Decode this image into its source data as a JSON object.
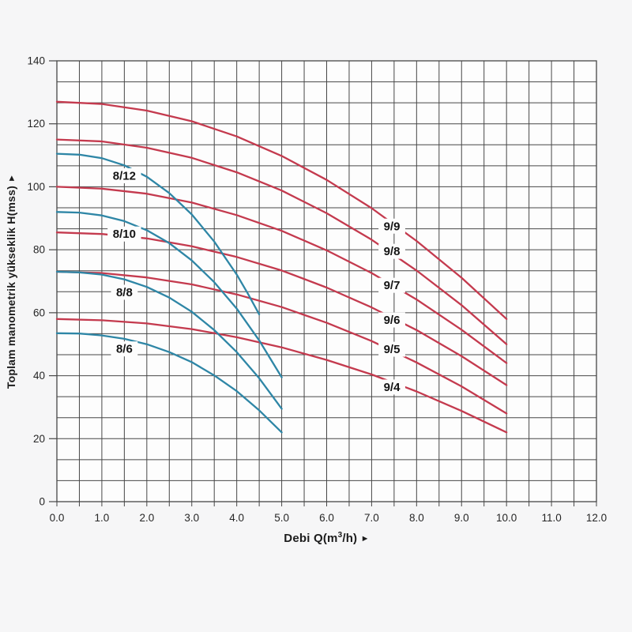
{
  "page": {
    "background": "#f6f6f7"
  },
  "chart_data": {
    "type": "line",
    "title": "",
    "xlabel": "Debi Q(m³/h)",
    "xlabel_parts": {
      "prefix": "Debi Q(m",
      "sup": "3",
      "suffix": "/h) "
    },
    "ylabel": "Toplam manometrik yükseklik H(mss) ",
    "axis_arrow": "►",
    "xlim": [
      0,
      12
    ],
    "ylim": [
      0,
      140
    ],
    "x_tick_labels": [
      "0.0",
      "1.0",
      "2.0",
      "3.0",
      "4.0",
      "5.0",
      "6.0",
      "7.0",
      "8.0",
      "9.0",
      "10.0",
      "11.0",
      "12.0"
    ],
    "x_tick_values": [
      0,
      1,
      2,
      3,
      4,
      5,
      6,
      7,
      8,
      9,
      10,
      11,
      12
    ],
    "x_minor_step": 0.5,
    "y_tick_labels": [
      "0",
      "20",
      "40",
      "60",
      "80",
      "100",
      "120",
      "140"
    ],
    "y_tick_values": [
      0,
      20,
      40,
      60,
      80,
      100,
      120,
      140
    ],
    "y_minor_divisions_per_major": 3,
    "grid": true,
    "legend_position": "labels-on-curves",
    "colors": {
      "blue": "#2e86a6",
      "red": "#c43a4e",
      "grid": "#474747",
      "text": "#262626",
      "label_text": "#141414",
      "plot_bg": "#fdfdfd",
      "page_bg": "#f6f6f7"
    },
    "series": [
      {
        "name": "9/9",
        "group": "red",
        "label": {
          "q": 7.45,
          "h": 87.5
        },
        "points": [
          [
            0,
            127
          ],
          [
            1,
            126.3
          ],
          [
            2,
            124.2
          ],
          [
            3,
            120.8
          ],
          [
            4,
            116.0
          ],
          [
            5,
            109.8
          ],
          [
            6,
            102.2
          ],
          [
            7,
            93.2
          ],
          [
            8,
            82.8
          ],
          [
            9,
            71.1
          ],
          [
            10,
            58.0
          ]
        ]
      },
      {
        "name": "9/8",
        "group": "red",
        "label": {
          "q": 7.45,
          "h": 79.5
        },
        "points": [
          [
            0,
            115
          ],
          [
            1,
            114.4
          ],
          [
            2,
            112.4
          ],
          [
            3,
            109.2
          ],
          [
            4,
            104.6
          ],
          [
            5,
            98.8
          ],
          [
            6,
            91.6
          ],
          [
            7,
            83.2
          ],
          [
            8,
            73.4
          ],
          [
            9,
            62.4
          ],
          [
            10,
            50.0
          ]
        ]
      },
      {
        "name": "9/7",
        "group": "red",
        "label": {
          "q": 7.45,
          "h": 68.7
        },
        "points": [
          [
            0,
            100
          ],
          [
            1,
            99.4
          ],
          [
            2,
            97.8
          ],
          [
            3,
            95.0
          ],
          [
            4,
            91.0
          ],
          [
            5,
            86.0
          ],
          [
            6,
            79.8
          ],
          [
            7,
            72.6
          ],
          [
            8,
            64.2
          ],
          [
            9,
            54.6
          ],
          [
            10,
            44.0
          ]
        ]
      },
      {
        "name": "9/6",
        "group": "red",
        "label": {
          "q": 7.45,
          "h": 57.7
        },
        "points": [
          [
            0,
            85.5
          ],
          [
            1,
            85.0
          ],
          [
            2,
            83.6
          ],
          [
            3,
            81.1
          ],
          [
            4,
            77.7
          ],
          [
            5,
            73.4
          ],
          [
            6,
            68.0
          ],
          [
            7,
            61.7
          ],
          [
            8,
            54.5
          ],
          [
            9,
            46.2
          ],
          [
            10,
            37.0
          ]
        ]
      },
      {
        "name": "9/5",
        "group": "red",
        "label": {
          "q": 7.45,
          "h": 48.4
        },
        "points": [
          [
            0,
            73
          ],
          [
            1,
            72.6
          ],
          [
            2,
            71.2
          ],
          [
            3,
            69.0
          ],
          [
            4,
            65.8
          ],
          [
            5,
            61.8
          ],
          [
            6,
            56.8
          ],
          [
            7,
            51.0
          ],
          [
            8,
            44.2
          ],
          [
            9,
            36.6
          ],
          [
            10,
            28.0
          ]
        ]
      },
      {
        "name": "9/4",
        "group": "red",
        "label": {
          "q": 7.45,
          "h": 36.4
        },
        "points": [
          [
            0,
            58
          ],
          [
            1,
            57.6
          ],
          [
            2,
            56.6
          ],
          [
            3,
            54.8
          ],
          [
            4,
            52.2
          ],
          [
            5,
            49.0
          ],
          [
            6,
            45.0
          ],
          [
            7,
            40.4
          ],
          [
            8,
            35.0
          ],
          [
            9,
            28.8
          ],
          [
            10,
            22.0
          ]
        ]
      },
      {
        "name": "8/12",
        "group": "blue",
        "label": {
          "q": 1.5,
          "h": 103.5
        },
        "points": [
          [
            0,
            110.5
          ],
          [
            0.5,
            110.2
          ],
          [
            1,
            109.1
          ],
          [
            1.5,
            106.8
          ],
          [
            2,
            103.2
          ],
          [
            2.5,
            98.0
          ],
          [
            3,
            91.2
          ],
          [
            3.5,
            82.6
          ],
          [
            4,
            72.1
          ],
          [
            4.25,
            66.0
          ],
          [
            4.5,
            59.5
          ]
        ]
      },
      {
        "name": "8/10",
        "group": "blue",
        "label": {
          "q": 1.5,
          "h": 85.0
        },
        "points": [
          [
            0,
            92
          ],
          [
            0.5,
            91.8
          ],
          [
            1,
            90.9
          ],
          [
            1.5,
            89.1
          ],
          [
            2,
            86.2
          ],
          [
            2.5,
            82.1
          ],
          [
            3,
            76.6
          ],
          [
            3.5,
            69.7
          ],
          [
            4,
            61.3
          ],
          [
            4.5,
            51.2
          ],
          [
            5,
            39.5
          ]
        ]
      },
      {
        "name": "8/8",
        "group": "blue",
        "label": {
          "q": 1.5,
          "h": 66.5
        },
        "points": [
          [
            0,
            73
          ],
          [
            0.5,
            72.8
          ],
          [
            1,
            72.1
          ],
          [
            1.5,
            70.6
          ],
          [
            2,
            68.2
          ],
          [
            2.5,
            64.8
          ],
          [
            3,
            60.3
          ],
          [
            3.5,
            54.5
          ],
          [
            4,
            47.5
          ],
          [
            4.5,
            39.2
          ],
          [
            5,
            29.5
          ]
        ]
      },
      {
        "name": "8/6",
        "group": "blue",
        "label": {
          "q": 1.5,
          "h": 48.5
        },
        "points": [
          [
            0,
            53.5
          ],
          [
            0.5,
            53.4
          ],
          [
            1,
            52.8
          ],
          [
            1.5,
            51.7
          ],
          [
            2,
            50.0
          ],
          [
            2.5,
            47.5
          ],
          [
            3,
            44.3
          ],
          [
            3.5,
            40.1
          ],
          [
            4,
            35.1
          ],
          [
            4.5,
            29.0
          ],
          [
            5,
            22.0
          ]
        ]
      }
    ]
  }
}
